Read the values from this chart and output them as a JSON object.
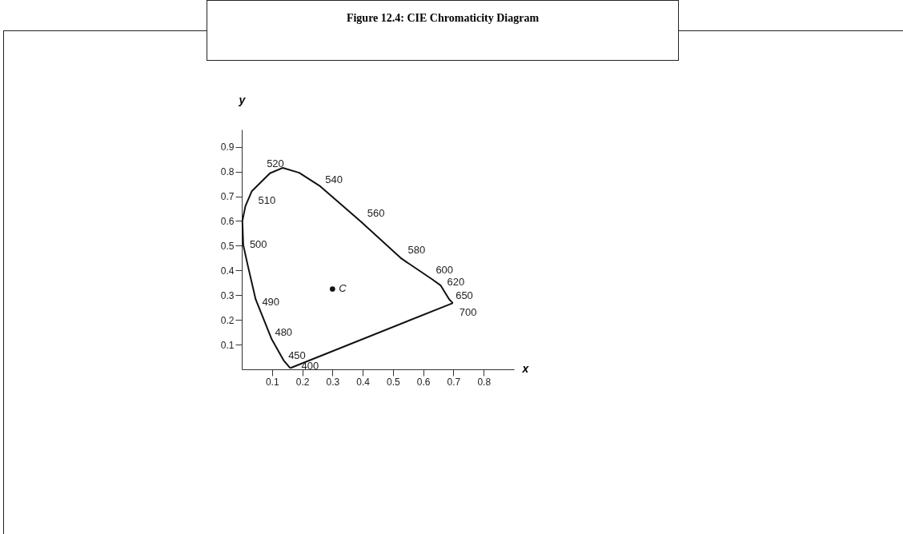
{
  "chart_data": {
    "type": "line",
    "title": "Figure 12.4: CIE Chromaticity Diagram",
    "xlabel": "x",
    "ylabel": "y",
    "xlim": [
      0,
      0.9
    ],
    "ylim": [
      0,
      0.97
    ],
    "xticks": [
      0.1,
      0.2,
      0.3,
      0.4,
      0.5,
      0.6,
      0.7,
      0.8
    ],
    "yticks": [
      0.1,
      0.2,
      0.3,
      0.4,
      0.5,
      0.6,
      0.7,
      0.8,
      0.9
    ],
    "grid": false,
    "series": [
      {
        "color": "#111111",
        "marker": "none",
        "x": [
          0.16,
          0.138,
          0.099,
          0.046,
          0.02,
          0.005,
          0.002,
          0.012,
          0.033,
          0.093,
          0.136,
          0.19,
          0.26,
          0.394,
          0.528,
          0.631,
          0.658,
          0.686,
          0.698
        ],
        "values": [
          0.005,
          0.037,
          0.122,
          0.283,
          0.42,
          0.503,
          0.6,
          0.66,
          0.72,
          0.793,
          0.815,
          0.795,
          0.74,
          0.597,
          0.448,
          0.363,
          0.339,
          0.283,
          0.268
        ]
      },
      {
        "color": "#111111",
        "marker": "none",
        "x": [
          0.16,
          0.698
        ],
        "values": [
          0.005,
          0.268
        ]
      },
      {
        "type": "scatter",
        "color": "#111111",
        "marker": "circle",
        "x": [
          0.3
        ],
        "values": [
          0.325
        ]
      }
    ],
    "annotations": [
      {
        "text": "400",
        "x": 0.16,
        "y": 0.005
      },
      {
        "text": "450",
        "x": 0.138,
        "y": 0.037
      },
      {
        "text": "480",
        "x": 0.099,
        "y": 0.122
      },
      {
        "text": "490",
        "x": 0.046,
        "y": 0.283
      },
      {
        "text": "500",
        "x": 0.005,
        "y": 0.503
      },
      {
        "text": "510",
        "x": 0.033,
        "y": 0.72
      },
      {
        "text": "520",
        "x": 0.093,
        "y": 0.793
      },
      {
        "text": "540",
        "x": 0.26,
        "y": 0.74
      },
      {
        "text": "560",
        "x": 0.394,
        "y": 0.597
      },
      {
        "text": "580",
        "x": 0.528,
        "y": 0.448
      },
      {
        "text": "600",
        "x": 0.631,
        "y": 0.363
      },
      {
        "text": "620",
        "x": 0.658,
        "y": 0.339
      },
      {
        "text": "650",
        "x": 0.686,
        "y": 0.283
      },
      {
        "text": "700",
        "x": 0.698,
        "y": 0.268
      },
      {
        "text": "C",
        "x": 0.3,
        "y": 0.325
      }
    ]
  }
}
